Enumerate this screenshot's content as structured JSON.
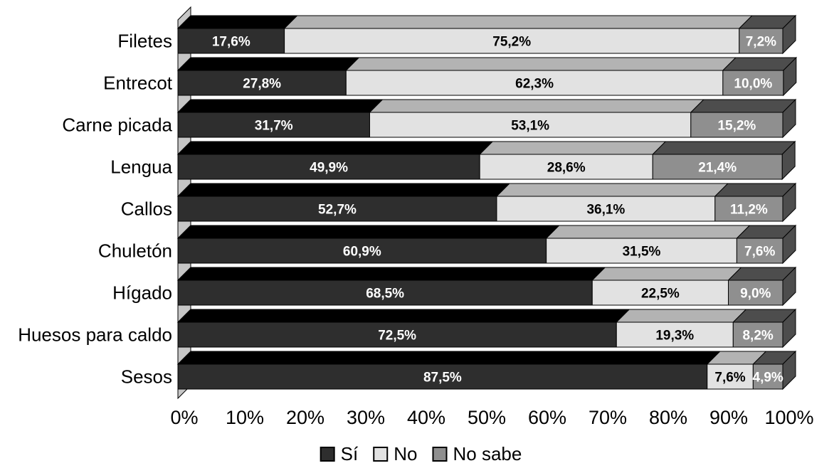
{
  "chart_data": {
    "type": "bar",
    "variant": "horizontal-stacked-3d",
    "background": "#ffffff",
    "outline_color": "#000000",
    "wall_color": "#c6c6c6",
    "end_cap_color": "#4d4d4d",
    "categories": [
      "Filetes",
      "Entrecot",
      "Carne picada",
      "Lengua",
      "Callos",
      "Chuletón",
      "Hígado",
      "Huesos para caldo",
      "Sesos"
    ],
    "series": [
      {
        "name": "Sí",
        "color": "#2e2e2e",
        "top_color": "#000000",
        "text_color": "#ffffff",
        "values": [
          17.6,
          27.8,
          31.7,
          49.9,
          52.7,
          60.9,
          68.5,
          72.5,
          87.5
        ],
        "labels": [
          "17,6%",
          "27,8%",
          "31,7%",
          "49,9%",
          "52,7%",
          "60,9%",
          "68,5%",
          "72,5%",
          "87,5%"
        ]
      },
      {
        "name": "No",
        "color": "#e2e2e2",
        "top_color": "#b3b3b3",
        "text_color": "#000000",
        "values": [
          75.2,
          62.3,
          53.1,
          28.6,
          36.1,
          31.5,
          22.5,
          19.3,
          7.6
        ],
        "labels": [
          "75,2%",
          "62,3%",
          "53,1%",
          "28,6%",
          "36,1%",
          "31,5%",
          "22,5%",
          "19,3%",
          "7,6%"
        ]
      },
      {
        "name": "No sabe",
        "color": "#8f8f8f",
        "top_color": "#4d4d4d",
        "text_color": "#ffffff",
        "values": [
          7.2,
          10.0,
          15.2,
          21.4,
          11.2,
          7.6,
          9.0,
          8.2,
          4.9
        ],
        "labels": [
          "7,2%",
          "10,0%",
          "15,2%",
          "21,4%",
          "11,2%",
          "7,6%",
          "9,0%",
          "8,2%",
          "4,9%"
        ]
      }
    ],
    "x_ticks": [
      "0%",
      "10%",
      "20%",
      "30%",
      "40%",
      "50%",
      "60%",
      "70%",
      "80%",
      "90%",
      "100%"
    ],
    "xlim": [
      0,
      100
    ],
    "grid": false,
    "legend": {
      "position": "bottom",
      "items": [
        "Sí",
        "No",
        "No sabe"
      ]
    }
  }
}
